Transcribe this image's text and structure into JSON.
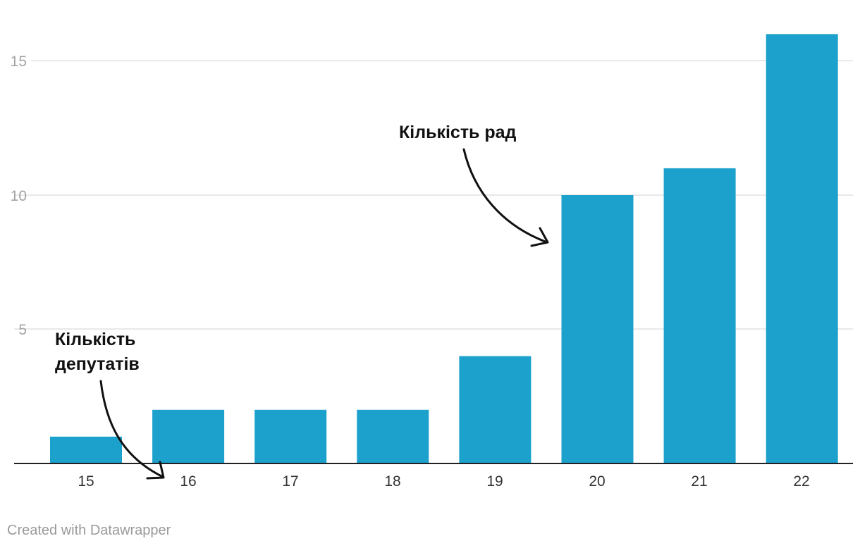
{
  "chart_data": {
    "type": "bar",
    "categories": [
      "15",
      "16",
      "17",
      "18",
      "19",
      "20",
      "21",
      "22"
    ],
    "values": [
      1,
      2,
      2,
      2,
      4,
      10,
      11,
      16
    ],
    "ylim": [
      0,
      16
    ],
    "yticks": [
      "5",
      "10",
      "15"
    ],
    "grid": true,
    "title": "",
    "xlabel": "",
    "ylabel": "",
    "bar_color": "#1ba1cc",
    "annotations": {
      "councils": "Кількість рад",
      "deputies_line1": "Кількість",
      "deputies_line2": "депутатів"
    }
  },
  "credit": "Created with Datawrapper"
}
